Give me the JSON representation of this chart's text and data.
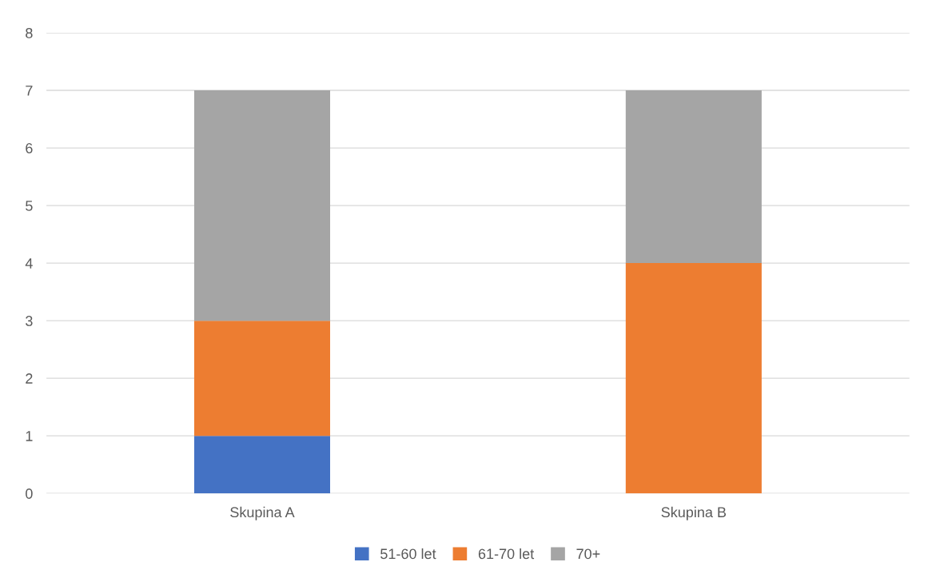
{
  "chart_data": {
    "type": "bar",
    "stacked": true,
    "categories": [
      "Skupina A",
      "Skupina B"
    ],
    "series": [
      {
        "name": "51-60 let",
        "color": "#4472c4",
        "values": [
          1,
          0
        ]
      },
      {
        "name": "61-70 let",
        "color": "#ed7d31",
        "values": [
          2,
          4
        ]
      },
      {
        "name": "70+",
        "color": "#a5a5a5",
        "values": [
          4,
          3
        ]
      }
    ],
    "ylim": [
      0,
      8
    ],
    "yticks": [
      0,
      1,
      2,
      3,
      4,
      5,
      6,
      7,
      8
    ],
    "grid": "y",
    "legend": "bottom"
  }
}
